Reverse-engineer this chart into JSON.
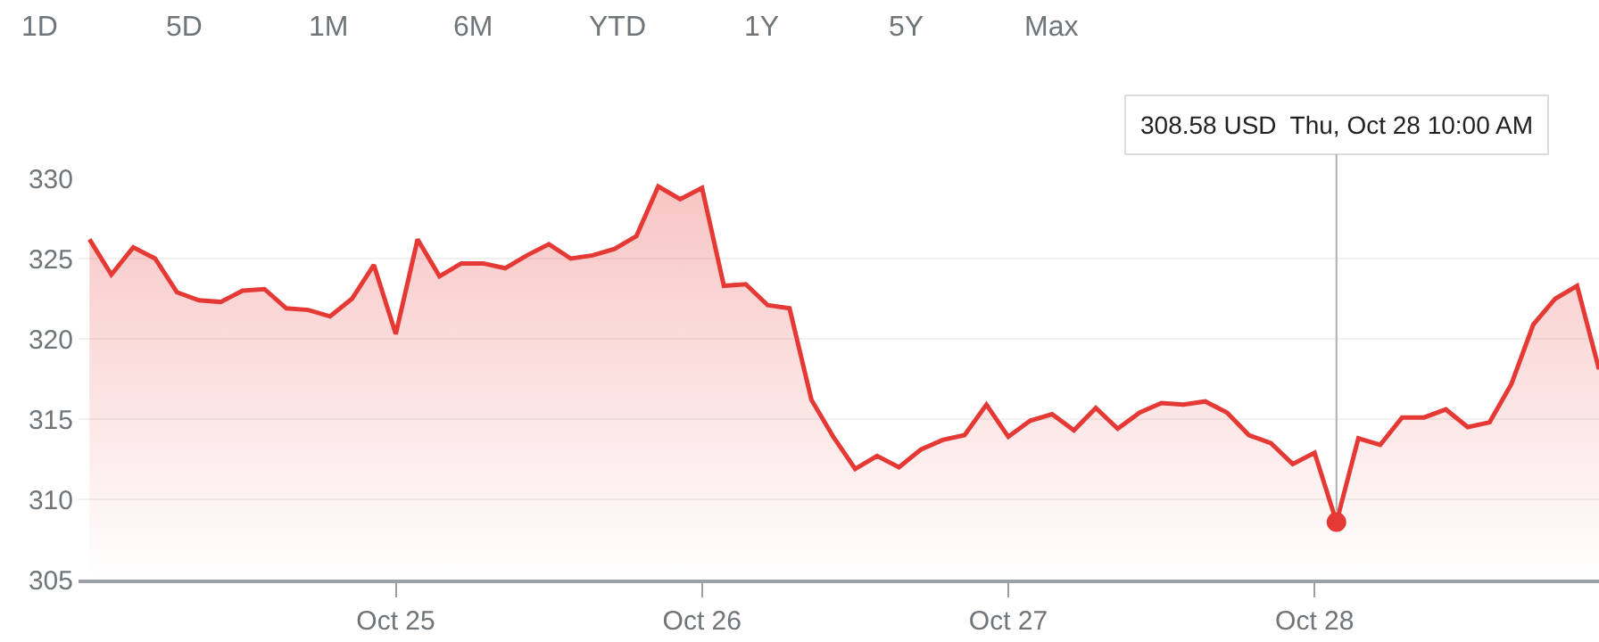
{
  "chart_data": {
    "type": "area",
    "annotations": [
      "1D",
      "5D",
      "1M",
      "6M",
      "YTD",
      "1Y",
      "5Y",
      "Max",
      {
        "text": "308.58 USD  Thu, Oct 28 10:00 AM",
        "y": 308.58
      }
    ],
    "categories": [
      null,
      null,
      null,
      null,
      null,
      null,
      null,
      null,
      null,
      null,
      null,
      null,
      null,
      null,
      "Oct 25",
      null,
      null,
      null,
      null,
      null,
      null,
      null,
      null,
      null,
      null,
      null,
      null,
      null,
      "Oct 26",
      null,
      null,
      null,
      null,
      null,
      null,
      null,
      null,
      null,
      null,
      null,
      null,
      null,
      "Oct 27",
      null,
      null,
      null,
      null,
      null,
      null,
      null,
      null,
      null,
      null,
      null,
      null,
      null,
      "Oct 28",
      null,
      null,
      null,
      null,
      null,
      null,
      null,
      null,
      null,
      null,
      null,
      null,
      null
    ],
    "series": [
      {
        "color": "#e53935",
        "values": [
          326.2,
          324.0,
          325.7,
          325.0,
          322.9,
          322.4,
          322.3,
          323.0,
          323.1,
          321.9,
          321.8,
          321.4,
          322.5,
          324.6,
          320.3,
          326.2,
          323.9,
          324.7,
          324.7,
          324.4,
          325.2,
          325.9,
          325.0,
          325.2,
          325.6,
          326.4,
          329.5,
          328.7,
          329.4,
          323.3,
          323.4,
          322.1,
          321.9,
          316.2,
          313.9,
          311.9,
          312.7,
          312.0,
          313.1,
          313.7,
          314.0,
          315.9,
          313.9,
          314.9,
          315.3,
          314.3,
          315.7,
          314.4,
          315.4,
          316.0,
          315.9,
          316.1,
          315.4,
          314.0,
          313.5,
          312.2,
          312.9,
          308.58,
          313.8,
          313.4,
          315.1,
          315.1,
          315.6,
          314.5,
          314.8,
          317.2,
          320.9,
          322.5,
          323.3,
          318.1
        ]
      }
    ],
    "ylim": [
      305,
      330
    ],
    "yticks": [
      305,
      310,
      315,
      320,
      325,
      330
    ],
    "grid": "y",
    "marker": "none",
    "line_style": "solid"
  }
}
